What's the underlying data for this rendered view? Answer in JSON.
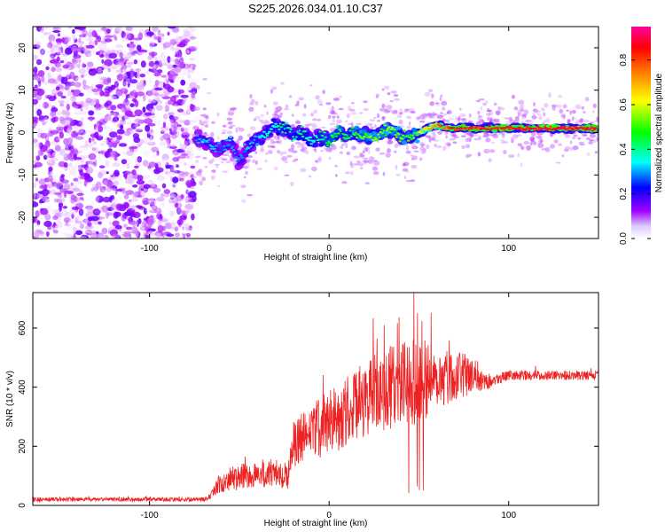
{
  "chart_data": [
    {
      "type": "heatmap",
      "title": "S225.2026.034.01.10.C37",
      "xlabel": "Height of straight line (km)",
      "ylabel": "Frequency (Hz)",
      "xlim": [
        -165,
        150
      ],
      "ylim": [
        -25,
        25
      ],
      "xticks": [
        -100,
        0,
        100
      ],
      "xtick_labels": [
        "-100",
        "0",
        "100"
      ],
      "yticks": [
        -20,
        -10,
        0,
        10,
        20
      ],
      "ytick_labels": [
        "-20",
        "-10",
        "0",
        "10",
        "20"
      ],
      "noise_region_x": [
        -165,
        -75
      ],
      "ridge": {
        "x": [
          -75,
          -70,
          -65,
          -60,
          -55,
          -50,
          -45,
          -40,
          -35,
          -30,
          -25,
          -20,
          -15,
          -10,
          -5,
          0,
          5,
          10,
          15,
          20,
          25,
          30,
          35,
          40,
          45,
          50,
          55,
          60,
          65,
          70,
          75,
          80,
          90,
          100,
          110,
          120,
          130,
          140,
          148
        ],
        "y": [
          -1,
          -2,
          -3,
          -4,
          -2,
          -7,
          -3,
          -2,
          0,
          2,
          1,
          -1,
          0,
          -2,
          -1,
          -2,
          0,
          -1,
          0,
          -1,
          -1,
          0,
          1,
          -1,
          -1,
          0,
          1,
          2,
          1,
          1,
          1,
          1,
          1,
          1,
          1,
          1,
          1,
          1,
          1
        ],
        "amplitude": [
          0.3,
          0.35,
          0.35,
          0.3,
          0.35,
          0.3,
          0.35,
          0.35,
          0.4,
          0.4,
          0.45,
          0.4,
          0.45,
          0.4,
          0.45,
          0.5,
          0.5,
          0.5,
          0.55,
          0.55,
          0.6,
          0.55,
          0.6,
          0.55,
          0.55,
          0.6,
          0.7,
          0.8,
          0.85,
          0.9,
          0.9,
          0.9,
          0.92,
          0.9,
          0.92,
          0.95,
          0.95,
          0.95,
          0.95
        ]
      },
      "colorbar": {
        "label": "Normalized spectral amplitude",
        "range": [
          0,
          0.95
        ],
        "ticks": [
          0.0,
          0.2,
          0.4,
          0.6,
          0.8
        ],
        "tick_labels": [
          "0.0",
          "0.2",
          "0.4",
          "0.6",
          "0.8"
        ],
        "colormap": [
          "#ffffff",
          "#a000ff",
          "#0000ff",
          "#00ffff",
          "#00ff00",
          "#ffff00",
          "#ff8000",
          "#ff0000",
          "#ff00a0"
        ]
      }
    },
    {
      "type": "line",
      "xlabel": "Height of straight line (km)",
      "ylabel": "SNR (10 * v/v)",
      "xlim": [
        -165,
        150
      ],
      "ylim": [
        0,
        720
      ],
      "xticks": [
        -100,
        0,
        100
      ],
      "xtick_labels": [
        "-100",
        "0",
        "100"
      ],
      "yticks": [
        0,
        200,
        400,
        600
      ],
      "ytick_labels": [
        "0",
        "200",
        "400",
        "600"
      ],
      "color": "#ee2222",
      "series": [
        {
          "name": "SNR",
          "x": [
            -165,
            -140,
            -120,
            -100,
            -80,
            -68,
            -60,
            -50,
            -40,
            -30,
            -23,
            -20,
            -10,
            0,
            10,
            20,
            30,
            40,
            50,
            60,
            70,
            80,
            90,
            100,
            110,
            120,
            130,
            140,
            150
          ],
          "mean": [
            20,
            20,
            20,
            20,
            20,
            21,
            80,
            95,
            105,
            110,
            100,
            200,
            250,
            280,
            320,
            360,
            390,
            410,
            420,
            430,
            440,
            440,
            420,
            440,
            440,
            440,
            440,
            440,
            440
          ],
          "spread": [
            15,
            12,
            12,
            12,
            12,
            12,
            70,
            80,
            90,
            90,
            80,
            150,
            180,
            200,
            220,
            240,
            260,
            260,
            280,
            200,
            150,
            120,
            40,
            30,
            30,
            30,
            30,
            30,
            30
          ]
        }
      ]
    }
  ]
}
